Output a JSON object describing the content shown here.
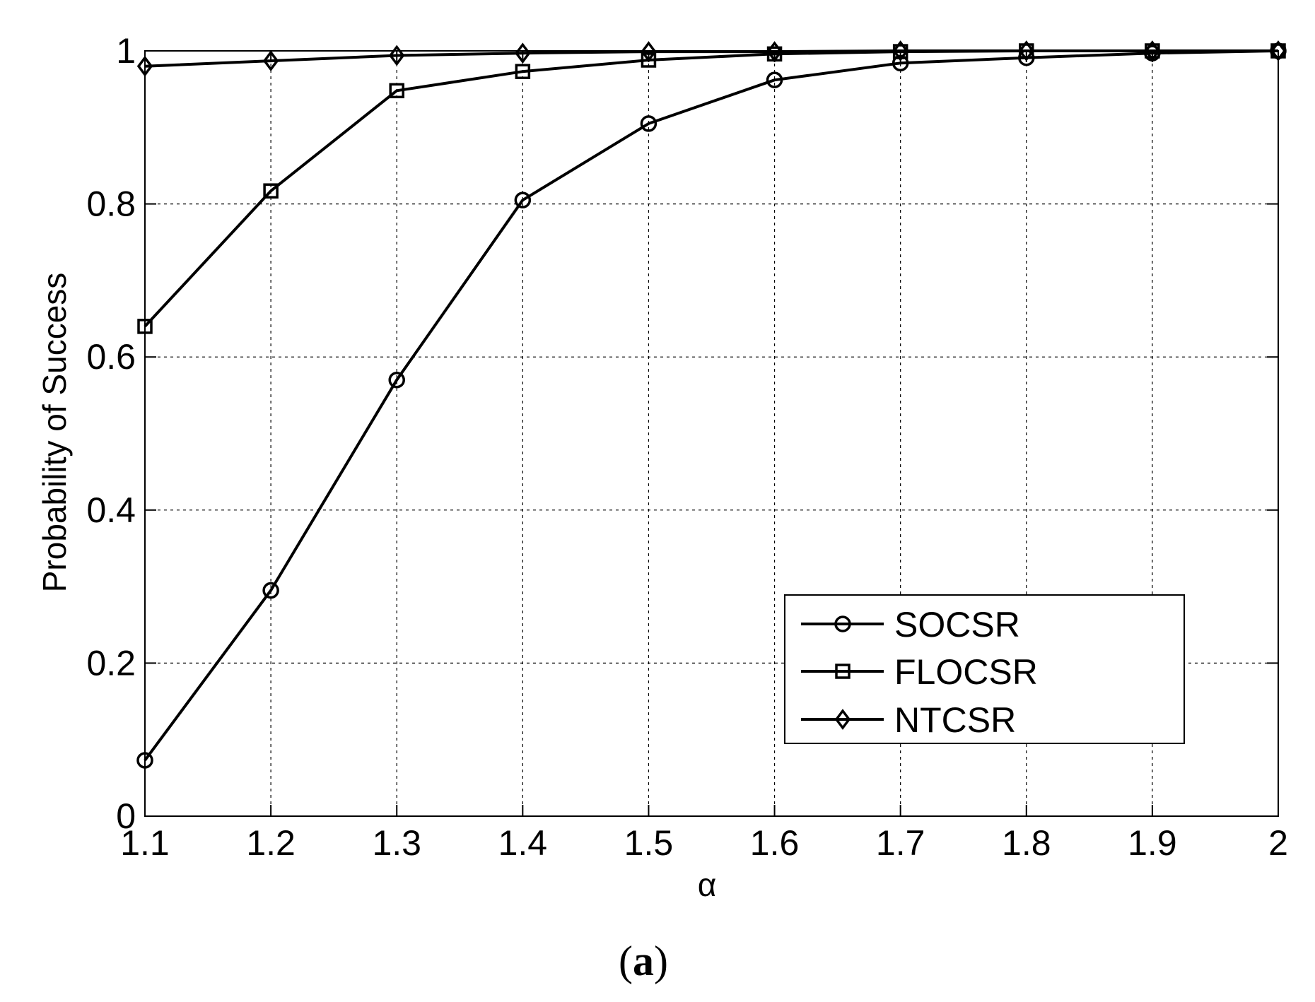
{
  "chart_data": {
    "type": "line",
    "x": [
      1.1,
      1.2,
      1.3,
      1.4,
      1.5,
      1.6,
      1.7,
      1.8,
      1.9,
      2.0
    ],
    "series": [
      {
        "name": "SOCSR",
        "marker": "circle",
        "values": [
          0.073,
          0.295,
          0.57,
          0.805,
          0.905,
          0.962,
          0.984,
          0.991,
          0.997,
          1.0
        ]
      },
      {
        "name": "FLOCSR",
        "marker": "square",
        "values": [
          0.64,
          0.817,
          0.948,
          0.973,
          0.988,
          0.996,
          0.999,
          1.0,
          1.0,
          1.0
        ]
      },
      {
        "name": "NTCSR",
        "marker": "diamond",
        "values": [
          0.98,
          0.987,
          0.994,
          0.997,
          0.999,
          0.999,
          1.0,
          1.0,
          1.0,
          1.0
        ]
      }
    ],
    "xlabel": "α",
    "ylabel": "Probability of Success",
    "xlim": [
      1.1,
      2.0
    ],
    "ylim": [
      0,
      1
    ],
    "xticks": [
      "1.1",
      "1.2",
      "1.3",
      "1.4",
      "1.5",
      "1.6",
      "1.7",
      "1.8",
      "1.9",
      "2"
    ],
    "yticks": [
      "0",
      "0.2",
      "0.4",
      "0.6",
      "0.8",
      "1"
    ],
    "grid": true,
    "legend_position": "bottom-right",
    "line_color": "#000000"
  },
  "caption": {
    "open_paren": "(",
    "letter": "a",
    "close_paren": ")"
  }
}
